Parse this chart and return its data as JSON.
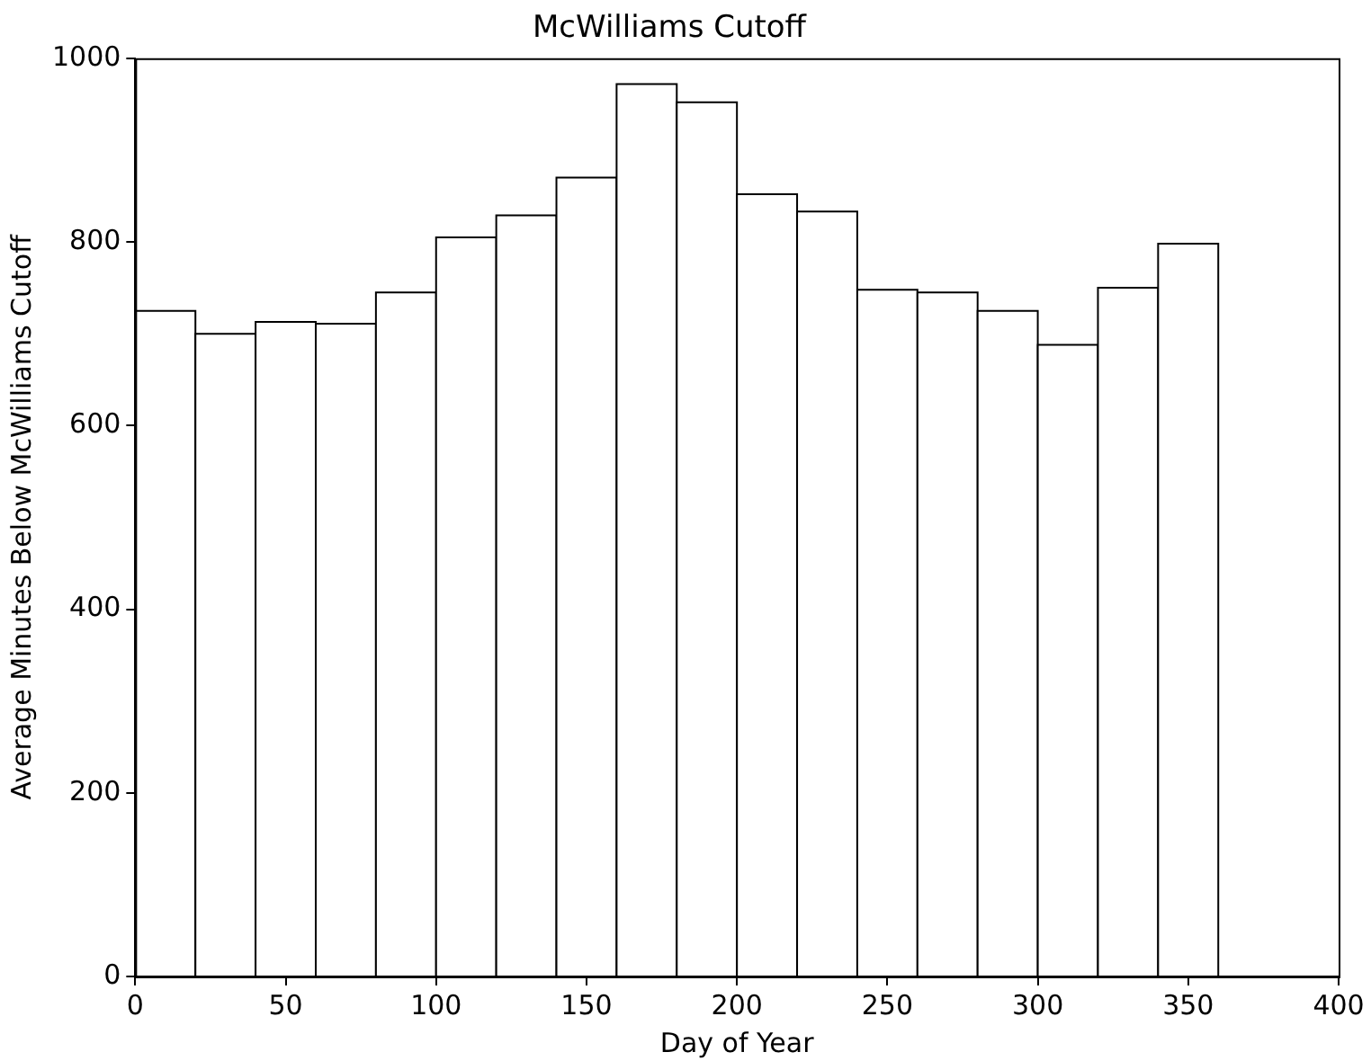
{
  "chart_data": {
    "type": "histogram",
    "title": "McWilliams Cutoff",
    "xlabel": "Day of Year",
    "ylabel": "Average Minutes Below McWilliams Cutoff",
    "bins": [
      0,
      20,
      40,
      60,
      80,
      100,
      120,
      140,
      160,
      180,
      200,
      220,
      240,
      260,
      280,
      300,
      320,
      340,
      360
    ],
    "values": [
      725,
      700,
      713,
      711,
      745,
      805,
      829,
      870,
      972,
      952,
      852,
      833,
      748,
      745,
      725,
      688,
      750,
      798
    ],
    "color": "#ffffff",
    "xlim": [
      0,
      400
    ],
    "xticks": [
      0,
      50,
      100,
      150,
      200,
      250,
      300,
      350,
      400
    ],
    "ylim": [
      0,
      1000
    ],
    "yticks": [
      0,
      200,
      400,
      600,
      800,
      1000
    ],
    "grid": false
  }
}
